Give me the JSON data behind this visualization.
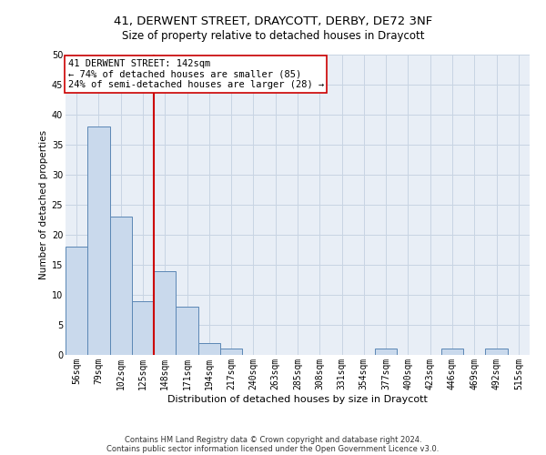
{
  "title1": "41, DERWENT STREET, DRAYCOTT, DERBY, DE72 3NF",
  "title2": "Size of property relative to detached houses in Draycott",
  "xlabel": "Distribution of detached houses by size in Draycott",
  "ylabel": "Number of detached properties",
  "annotation_line1": "41 DERWENT STREET: 142sqm",
  "annotation_line2": "← 74% of detached houses are smaller (85)",
  "annotation_line3": "24% of semi-detached houses are larger (28) →",
  "bin_labels": [
    "56sqm",
    "79sqm",
    "102sqm",
    "125sqm",
    "148sqm",
    "171sqm",
    "194sqm",
    "217sqm",
    "240sqm",
    "263sqm",
    "285sqm",
    "308sqm",
    "331sqm",
    "354sqm",
    "377sqm",
    "400sqm",
    "423sqm",
    "446sqm",
    "469sqm",
    "492sqm",
    "515sqm"
  ],
  "bin_values": [
    18,
    38,
    23,
    9,
    14,
    8,
    2,
    1,
    0,
    0,
    0,
    0,
    0,
    0,
    1,
    0,
    0,
    1,
    0,
    1,
    0
  ],
  "bar_color": "#c9d9ec",
  "bar_edge_color": "#5b87b5",
  "bar_width": 1.0,
  "vline_x": 3.5,
  "vline_color": "#cc0000",
  "ylim": [
    0,
    50
  ],
  "yticks": [
    0,
    5,
    10,
    15,
    20,
    25,
    30,
    35,
    40,
    45,
    50
  ],
  "grid_color": "#c8d4e3",
  "bg_color": "#e8eef6",
  "box_color": "#cc0000",
  "footnote1": "Contains HM Land Registry data © Crown copyright and database right 2024.",
  "footnote2": "Contains public sector information licensed under the Open Government Licence v3.0.",
  "title1_fontsize": 9.5,
  "title2_fontsize": 8.5,
  "xlabel_fontsize": 8,
  "ylabel_fontsize": 7.5,
  "tick_fontsize": 7,
  "annotation_fontsize": 7.5,
  "footnote_fontsize": 6
}
